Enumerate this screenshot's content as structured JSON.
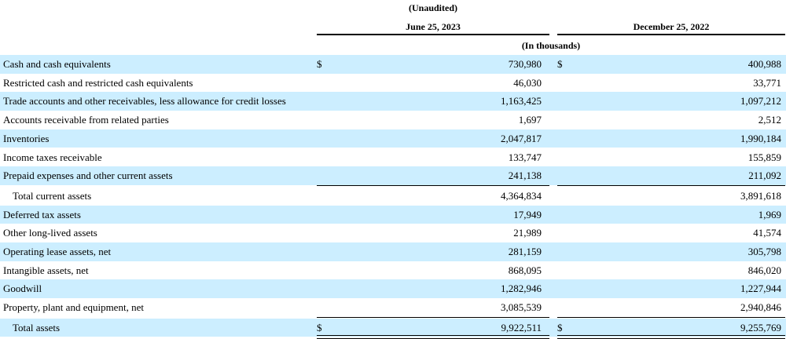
{
  "header": {
    "unaudited": "(Unaudited)",
    "col1": "June 25, 2023",
    "col2": "December 25, 2022",
    "units": "(In thousands)"
  },
  "rows": [
    {
      "label": "Cash and cash equivalents",
      "dollar1": "$",
      "v1": "730,980",
      "dollar2": "$",
      "v2": "400,988"
    },
    {
      "label": "Restricted cash and restricted cash equivalents",
      "v1": "46,030",
      "v2": "33,771"
    },
    {
      "label": "Trade accounts and other receivables, less allowance for credit losses",
      "v1": "1,163,425",
      "v2": "1,097,212"
    },
    {
      "label": "Accounts receivable from related parties",
      "v1": "1,697",
      "v2": "2,512"
    },
    {
      "label": "Inventories",
      "v1": "2,047,817",
      "v2": "1,990,184"
    },
    {
      "label": "Income taxes receivable",
      "v1": "133,747",
      "v2": "155,859"
    },
    {
      "label": "Prepaid expenses and other current assets",
      "v1": "241,138",
      "v2": "211,092"
    },
    {
      "label": "Total current assets",
      "v1": "4,364,834",
      "v2": "3,891,618"
    },
    {
      "label": "Deferred tax assets",
      "v1": "17,949",
      "v2": "1,969"
    },
    {
      "label": "Other long-lived assets",
      "v1": "21,989",
      "v2": "41,574"
    },
    {
      "label": "Operating lease assets, net",
      "v1": "281,159",
      "v2": "305,798"
    },
    {
      "label": "Intangible assets, net",
      "v1": "868,095",
      "v2": "846,020"
    },
    {
      "label": "Goodwill",
      "v1": "1,282,946",
      "v2": "1,227,944"
    },
    {
      "label": "Property, plant and equipment, net",
      "v1": "3,085,539",
      "v2": "2,940,846"
    },
    {
      "label": "Total assets",
      "dollar1": "$",
      "v1": "9,922,511",
      "dollar2": "$",
      "v2": "9,255,769"
    }
  ]
}
